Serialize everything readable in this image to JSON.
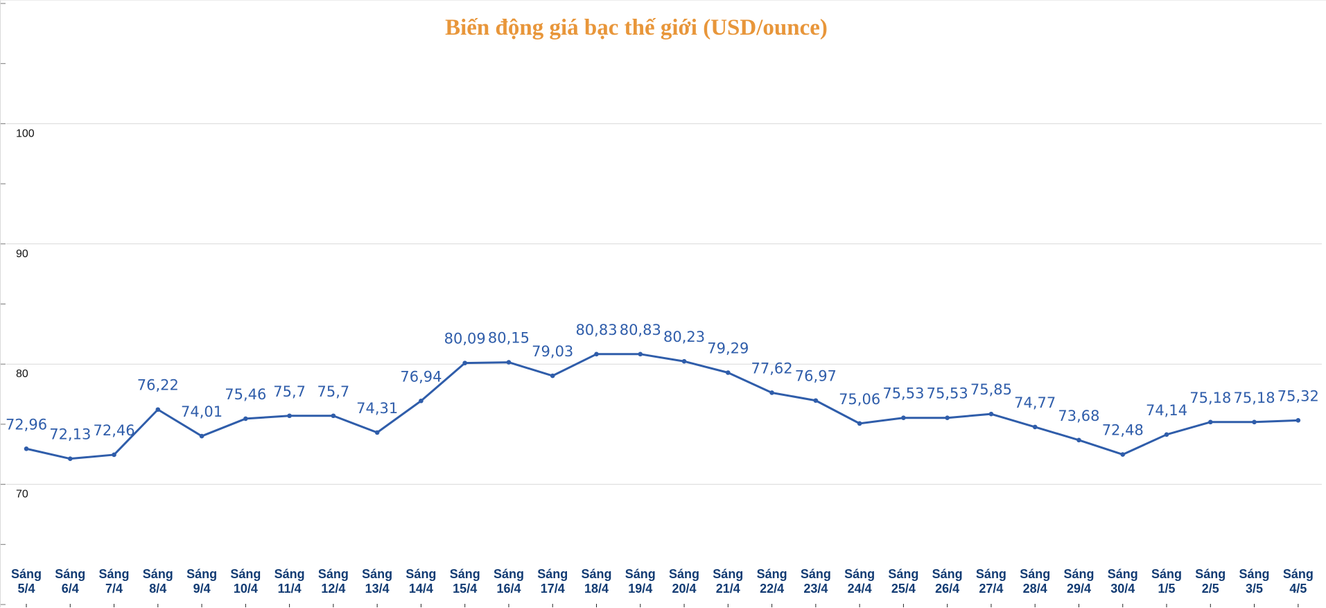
{
  "chart_data": {
    "type": "line",
    "title": "Biến động giá bạc thế giới (USD/ounce)",
    "xlabel": "",
    "ylabel": "",
    "ylim": [
      60,
      110
    ],
    "grid": true,
    "legend": "none",
    "categories": [
      "Sáng 5/4",
      "Sáng 6/4",
      "Sáng 7/4",
      "Sáng 8/4",
      "Sáng 9/4",
      "Sáng 10/4",
      "Sáng 11/4",
      "Sáng 12/4",
      "Sáng 13/4",
      "Sáng 14/4",
      "Sáng 15/4",
      "Sáng 16/4",
      "Sáng 17/4",
      "Sáng 18/4",
      "Sáng 19/4",
      "Sáng 20/4",
      "Sáng 21/4",
      "Sáng 22/4",
      "Sáng 23/4",
      "Sáng 24/4",
      "Sáng 25/4",
      "Sáng 26/4",
      "Sáng 27/4",
      "Sáng 28/4",
      "Sáng 29/4",
      "Sáng 30/4",
      "Sáng 1/5",
      "Sáng 2/5",
      "Sáng 3/5",
      "Sáng 4/5"
    ],
    "series": [
      {
        "values": [
          72.96,
          72.13,
          72.46,
          76.22,
          74.01,
          75.46,
          75.7,
          75.7,
          74.31,
          76.94,
          80.09,
          80.15,
          79.03,
          80.83,
          80.83,
          80.23,
          79.29,
          77.62,
          76.97,
          75.06,
          75.53,
          75.53,
          75.85,
          74.77,
          73.68,
          72.48,
          74.14,
          75.18,
          75.18,
          75.32
        ],
        "data_labels": [
          "72,96",
          "72,13",
          "72,46",
          "76,22",
          "74,01",
          "75,46",
          "75,7",
          "75,7",
          "74,31",
          "76,94",
          "80,09",
          "80,15",
          "79,03",
          "80,83",
          "80,83",
          "80,23",
          "79,29",
          "77,62",
          "76,97",
          "75,06",
          "75,53",
          "75,53",
          "75,85",
          "74,77",
          "73,68",
          "72,48",
          "74,14",
          "75,18",
          "75,18",
          "75,32"
        ]
      }
    ],
    "y_ticks": [
      {
        "value": 70,
        "label": "70"
      },
      {
        "value": 80,
        "label": "80"
      },
      {
        "value": 90,
        "label": "90"
      },
      {
        "value": 100,
        "label": "100"
      }
    ],
    "colors": {
      "line": "#2F5DAA",
      "data_label": "#2F5DAA",
      "x_label": "#123B73",
      "title": "#E8963A",
      "grid": "#d9d9d9"
    }
  }
}
